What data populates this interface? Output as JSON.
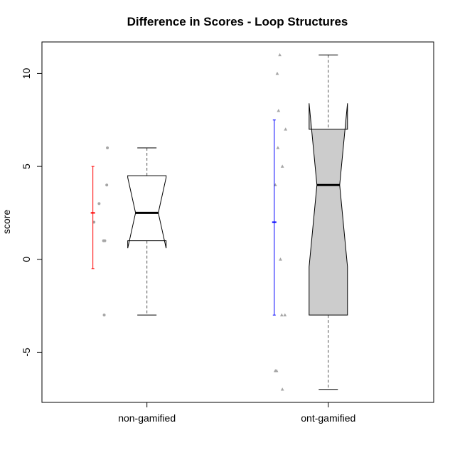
{
  "chart_data": {
    "type": "boxplot",
    "title": "Difference in Scores - Loop Structures",
    "xlabel": "",
    "ylabel": "score",
    "ylim": [
      -7.7,
      11.7
    ],
    "yticks": [
      -5,
      0,
      5,
      10
    ],
    "yticklabels": [
      "-5",
      "0",
      "5",
      "10"
    ],
    "categories": [
      "non-gamified",
      "ont-gamified"
    ],
    "boxes": [
      {
        "name": "non-gamified",
        "min": -3,
        "q1": 1,
        "median": 2.5,
        "q3": 4.5,
        "max": 6,
        "notch_low": 0.6,
        "notch_high": 4.4,
        "fill": "#ffffff",
        "points": [
          {
            "x": -0.05,
            "y": 2
          },
          {
            "x": 0.03,
            "y": 3
          },
          {
            "x": 0.1,
            "y": 1
          },
          {
            "x": 0.12,
            "y": 1
          },
          {
            "x": 0.11,
            "y": -3
          },
          {
            "x": 0.15,
            "y": 4
          },
          {
            "x": 0.16,
            "y": 6
          }
        ],
        "point_color": "#a6a6a6",
        "mean": 2.5,
        "interval_low": -0.5,
        "interval_high": 5.0,
        "interval_color": "#ff0000"
      },
      {
        "name": "ont-gamified",
        "min": -7,
        "q1": -3,
        "median": 4,
        "q3": 7,
        "max": 11,
        "notch_low": -0.4,
        "notch_high": 8.4,
        "fill": "#cccccc",
        "points": [
          {
            "x": -0.05,
            "y": 4
          },
          {
            "x": -0.02,
            "y": 10
          },
          {
            "x": -0.05,
            "y": -6
          },
          {
            "x": -0.03,
            "y": -6
          },
          {
            "x": -0.01,
            "y": 6
          },
          {
            "x": 0.0,
            "y": 8
          },
          {
            "x": 0.02,
            "y": 11
          },
          {
            "x": 0.03,
            "y": 0
          },
          {
            "x": 0.05,
            "y": -3
          },
          {
            "x": 0.06,
            "y": 5
          },
          {
            "x": 0.06,
            "y": -7
          },
          {
            "x": 0.1,
            "y": -3
          },
          {
            "x": 0.11,
            "y": 7
          }
        ],
        "point_color": "#a6a6a6",
        "mean": 2.0,
        "interval_low": -3.0,
        "interval_high": 7.5,
        "interval_color": "#0000ff"
      }
    ],
    "grid": false,
    "legend": "none"
  }
}
